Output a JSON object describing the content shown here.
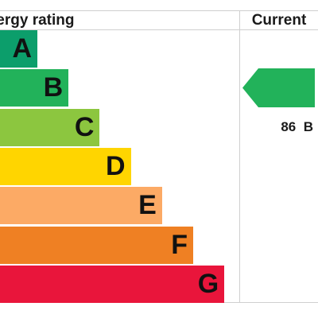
{
  "header": {
    "rating_label": "Energy rating",
    "current_label": "Current"
  },
  "chart_data": {
    "type": "bar",
    "categories": [
      "A",
      "B",
      "C",
      "D",
      "E",
      "F",
      "G"
    ],
    "series": [
      {
        "values": [
          1,
          2,
          3,
          4,
          5,
          6,
          7
        ]
      }
    ],
    "colors": [
      "#0c9e6b",
      "#22b25a",
      "#8cc63f",
      "#ffd500",
      "#fcaa65",
      "#ef8023",
      "#e9153b"
    ],
    "title": "",
    "xlabel": "",
    "ylabel": "",
    "current": {
      "score": "86",
      "band": "B",
      "color": "#22b25a"
    }
  }
}
